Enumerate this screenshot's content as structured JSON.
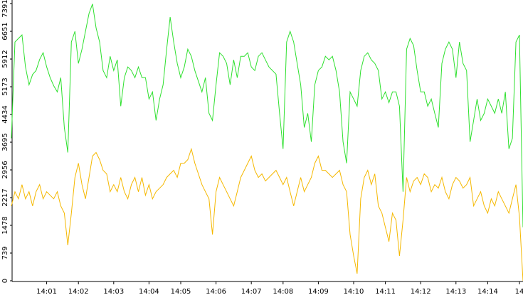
{
  "chart_data": {
    "type": "line",
    "categories": [
      null,
      null,
      null,
      null,
      null,
      null,
      null,
      null,
      null,
      null,
      "14:01",
      null,
      null,
      null,
      null,
      null,
      null,
      null,
      null,
      "14:02",
      null,
      null,
      null,
      null,
      null,
      null,
      null,
      null,
      null,
      "14:03",
      null,
      null,
      null,
      null,
      null,
      null,
      null,
      null,
      null,
      "14:04",
      null,
      null,
      null,
      null,
      null,
      null,
      null,
      null,
      "14:05",
      null,
      null,
      null,
      null,
      null,
      null,
      null,
      null,
      null,
      "14:06",
      null,
      null,
      null,
      null,
      null,
      null,
      null,
      null,
      null,
      "14:07",
      null,
      null,
      null,
      null,
      null,
      null,
      null,
      null,
      "14:08",
      null,
      null,
      null,
      null,
      null,
      null,
      null,
      null,
      null,
      "14:09",
      null,
      null,
      null,
      null,
      null,
      null,
      null,
      null,
      null,
      "14:10",
      null,
      null,
      null,
      null,
      null,
      null,
      null,
      null,
      "14:11",
      null,
      null,
      null,
      null,
      null,
      null,
      null,
      null,
      null,
      "14:12",
      null,
      null,
      null,
      null,
      null,
      null,
      null,
      null,
      null,
      "14:13",
      null,
      null,
      null,
      null,
      null,
      null,
      null,
      null,
      "14:14",
      null,
      null,
      null,
      null,
      null,
      null,
      null,
      null,
      "14",
      null
    ],
    "series": [
      {
        "color": "#2ee02e",
        "values": [
          3800,
          6365,
          6460,
          6555,
          5700,
          5225,
          5500,
          5605,
          5900,
          6080,
          5700,
          5415,
          5200,
          5035,
          5415,
          4085,
          3420,
          6365,
          6650,
          5795,
          6175,
          6650,
          7125,
          7380,
          6745,
          6365,
          5605,
          5415,
          5985,
          5605,
          5890,
          4655,
          5415,
          5700,
          5605,
          5415,
          5700,
          5415,
          5415,
          4845,
          5035,
          4275,
          4845,
          5225,
          6175,
          7030,
          6365,
          5795,
          5415,
          5700,
          6175,
          5985,
          5605,
          5320,
          5035,
          5415,
          4465,
          4275,
          5225,
          6080,
          5985,
          5795,
          5225,
          5890,
          5415,
          5985,
          5985,
          6080,
          5700,
          5605,
          5985,
          6080,
          5890,
          5700,
          5605,
          5510,
          4465,
          3515,
          6365,
          6650,
          6365,
          5795,
          5225,
          4085,
          4465,
          3705,
          5225,
          5605,
          5700,
          5985,
          5890,
          5985,
          5605,
          5035,
          3705,
          3135,
          5035,
          4845,
          4655,
          5605,
          5985,
          6080,
          5890,
          5795,
          5605,
          4845,
          5035,
          4750,
          5035,
          5035,
          4655,
          2375,
          6175,
          6460,
          6270,
          5605,
          5035,
          5035,
          4655,
          4845,
          4465,
          4085,
          5795,
          6175,
          6365,
          6175,
          5415,
          6365,
          5795,
          5605,
          3705,
          4275,
          4845,
          4275,
          4465,
          4845,
          4655,
          4465,
          4845,
          4465,
          5035,
          3515,
          3800,
          6365,
          6555,
          1425
        ]
      },
      {
        "color": "#f5b800",
        "values": [
          1995,
          2375,
          2185,
          2565,
          2185,
          2375,
          1995,
          2375,
          2565,
          2185,
          2375,
          2280,
          2185,
          2375,
          1995,
          1805,
          950,
          1805,
          2755,
          3135,
          2565,
          2185,
          2755,
          3325,
          3420,
          3230,
          2945,
          2850,
          2375,
          2565,
          2375,
          2755,
          2375,
          2185,
          2565,
          2755,
          2375,
          2755,
          2280,
          2565,
          2185,
          2375,
          2470,
          2565,
          2755,
          2850,
          2945,
          2755,
          3135,
          3135,
          3230,
          3515,
          3135,
          2850,
          2565,
          2375,
          2185,
          1235,
          2375,
          2755,
          2565,
          2375,
          2185,
          1995,
          2375,
          2755,
          2945,
          3135,
          3325,
          2945,
          2755,
          2850,
          2660,
          2755,
          2850,
          2945,
          2755,
          2565,
          2755,
          2375,
          1995,
          2375,
          2755,
          2375,
          2565,
          2755,
          3135,
          3325,
          2945,
          2945,
          2850,
          2755,
          2850,
          2945,
          2565,
          2375,
          1235,
          665,
          190,
          2185,
          2755,
          2945,
          2565,
          2850,
          1995,
          1805,
          1425,
          1045,
          1805,
          1615,
          665,
          1615,
          2755,
          2375,
          2660,
          2755,
          2565,
          2850,
          2755,
          2375,
          2565,
          2470,
          2755,
          2375,
          2185,
          2565,
          2755,
          2660,
          2470,
          2565,
          2755,
          1995,
          2185,
          2375,
          1995,
          1805,
          2185,
          1995,
          2375,
          2185,
          1995,
          1805,
          2185,
          2565,
          1710,
          0
        ]
      }
    ],
    "ylim": [
      0,
      7391
    ],
    "yticks": [
      0,
      739,
      1478,
      2217,
      2956,
      3695,
      4434,
      5173,
      5912,
      6651,
      7391
    ]
  }
}
